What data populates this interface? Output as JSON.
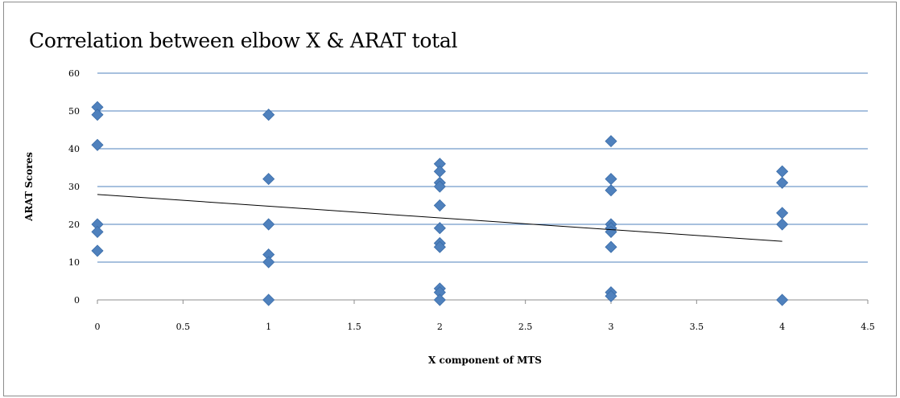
{
  "chart_data": {
    "type": "scatter",
    "title": "Correlation between elbow X & ARAT total",
    "xlabel": "X component of MTS",
    "ylabel": "ARAT Scores",
    "xlim": [
      0,
      4.5
    ],
    "ylim": [
      0,
      60
    ],
    "x_ticks": [
      "0",
      "0.5",
      "1",
      "1.5",
      "2",
      "2.5",
      "3",
      "3.5",
      "4",
      "4.5"
    ],
    "y_ticks": [
      "0",
      "10",
      "20",
      "30",
      "40",
      "50",
      "60"
    ],
    "grid": "horizontal",
    "legend": "none",
    "marker_color": "#4f81bd",
    "gridline_color": "#4f81bd",
    "trendline_color": "#000000",
    "points": [
      {
        "x": 0,
        "y": 51
      },
      {
        "x": 0,
        "y": 49
      },
      {
        "x": 0,
        "y": 41
      },
      {
        "x": 0,
        "y": 20
      },
      {
        "x": 0,
        "y": 18
      },
      {
        "x": 0,
        "y": 13
      },
      {
        "x": 1,
        "y": 49
      },
      {
        "x": 1,
        "y": 32
      },
      {
        "x": 1,
        "y": 20
      },
      {
        "x": 1,
        "y": 12
      },
      {
        "x": 1,
        "y": 10
      },
      {
        "x": 1,
        "y": 0
      },
      {
        "x": 2,
        "y": 36
      },
      {
        "x": 2,
        "y": 34
      },
      {
        "x": 2,
        "y": 31
      },
      {
        "x": 2,
        "y": 30
      },
      {
        "x": 2,
        "y": 25
      },
      {
        "x": 2,
        "y": 19
      },
      {
        "x": 2,
        "y": 15
      },
      {
        "x": 2,
        "y": 14
      },
      {
        "x": 2,
        "y": 3
      },
      {
        "x": 2,
        "y": 2
      },
      {
        "x": 2,
        "y": 0
      },
      {
        "x": 3,
        "y": 42
      },
      {
        "x": 3,
        "y": 32
      },
      {
        "x": 3,
        "y": 29
      },
      {
        "x": 3,
        "y": 20
      },
      {
        "x": 3,
        "y": 19
      },
      {
        "x": 3,
        "y": 18
      },
      {
        "x": 3,
        "y": 14
      },
      {
        "x": 3,
        "y": 2
      },
      {
        "x": 3,
        "y": 1
      },
      {
        "x": 4,
        "y": 34
      },
      {
        "x": 4,
        "y": 31
      },
      {
        "x": 4,
        "y": 23
      },
      {
        "x": 4,
        "y": 20
      },
      {
        "x": 4,
        "y": 0
      }
    ],
    "trendline": {
      "x": [
        0,
        4
      ],
      "y": [
        27.9,
        15.5
      ]
    }
  }
}
